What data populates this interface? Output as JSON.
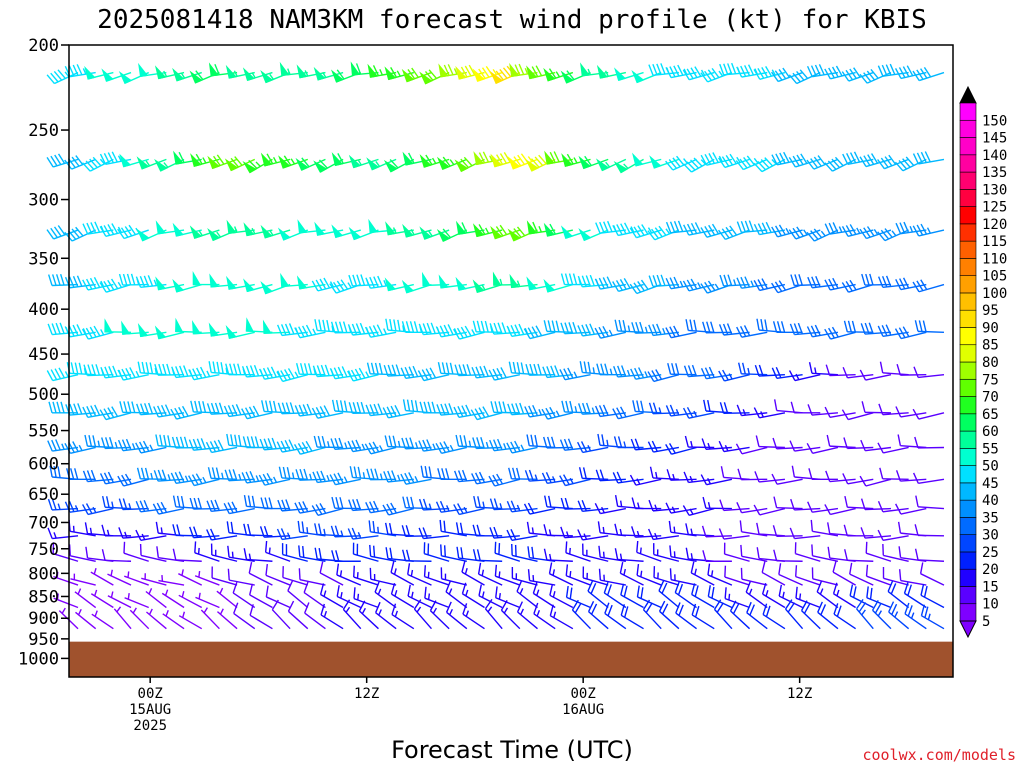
{
  "chart_data": {
    "type": "wind-barb-time-height",
    "title": "2025081418 NAM3KM forecast wind profile (kt) for KBIS",
    "xlabel": "Forecast Time (UTC)",
    "ylabel": "",
    "y_scale": "log-pressure",
    "y_reversed": true,
    "ylim": [
      1050,
      200
    ],
    "grid": false,
    "y_ticks": [
      "200",
      "250",
      "300",
      "350",
      "400",
      "450",
      "500",
      "550",
      "600",
      "650",
      "700",
      "750",
      "800",
      "850",
      "900",
      "950",
      "1000"
    ],
    "x_range_hours": [
      -4.5,
      44.5
    ],
    "x_ticks": [
      {
        "hour": 0,
        "lines": [
          "00Z",
          "15AUG",
          "2025"
        ]
      },
      {
        "hour": 12,
        "lines": [
          "12Z"
        ]
      },
      {
        "hour": 24,
        "lines": [
          "00Z",
          "16AUG"
        ]
      },
      {
        "hour": 36,
        "lines": [
          "12Z"
        ]
      },
      {
        "hour": 48,
        "lines": [
          "00Z",
          "17AUG"
        ]
      }
    ],
    "ground_pressure_hpa": 957,
    "ground_color": "#a0522d",
    "colorbar": {
      "placement": "right",
      "labels": [
        "5",
        "10",
        "15",
        "20",
        "25",
        "30",
        "35",
        "40",
        "45",
        "50",
        "55",
        "60",
        "65",
        "70",
        "75",
        "80",
        "85",
        "90",
        "95",
        "100",
        "105",
        "110",
        "115",
        "120",
        "125",
        "130",
        "135",
        "140",
        "145",
        "150"
      ],
      "colors": [
        "#7f00ff",
        "#5a00ff",
        "#2000ff",
        "#0020ff",
        "#0046ff",
        "#006bff",
        "#0090ff",
        "#00b8ff",
        "#00e0ff",
        "#00ffd0",
        "#00ff9a",
        "#00ff60",
        "#20ff20",
        "#60ff00",
        "#a0ff00",
        "#e0ff00",
        "#ffff00",
        "#ffe000",
        "#ffc000",
        "#ffa000",
        "#ff8000",
        "#ff6000",
        "#ff3000",
        "#ff0000",
        "#ff0040",
        "#ff0070",
        "#ff00a0",
        "#ff00c8",
        "#ff00e0",
        "#ff00ff"
      ],
      "under_color": "#7f00ff",
      "over_color": "#000000"
    },
    "levels_hpa": [
      215,
      270,
      325,
      375,
      425,
      475,
      525,
      575,
      625,
      675,
      725,
      775,
      825,
      875,
      925
    ],
    "level_winds": [
      {
        "p": 215,
        "dir": 255,
        "speed": [
          45,
          45,
          50,
          50,
          50,
          50,
          55,
          55,
          60,
          60,
          55,
          55,
          55,
          55,
          55,
          55,
          60,
          60,
          65,
          65,
          70,
          70,
          75,
          80,
          85,
          90,
          75,
          70,
          65,
          60,
          55,
          55,
          50,
          50,
          45,
          45,
          45,
          45,
          45,
          45,
          45,
          40,
          40,
          40,
          40,
          40,
          40,
          40,
          40,
          40
        ]
      },
      {
        "p": 270,
        "dir": 250,
        "speed": [
          40,
          40,
          45,
          45,
          50,
          55,
          55,
          60,
          65,
          70,
          70,
          65,
          65,
          65,
          60,
          60,
          60,
          55,
          55,
          60,
          60,
          65,
          65,
          70,
          75,
          80,
          85,
          80,
          70,
          65,
          60,
          55,
          55,
          50,
          50,
          45,
          45,
          45,
          45,
          45,
          45,
          40,
          40,
          40,
          40,
          40,
          40,
          40,
          40,
          40
        ]
      },
      {
        "p": 325,
        "dir": 255,
        "speed": [
          40,
          40,
          45,
          45,
          45,
          50,
          50,
          50,
          55,
          55,
          55,
          55,
          55,
          50,
          50,
          50,
          50,
          50,
          50,
          55,
          55,
          55,
          60,
          60,
          65,
          70,
          70,
          65,
          60,
          50,
          50,
          45,
          45,
          45,
          45,
          40,
          40,
          40,
          40,
          40,
          40,
          35,
          35,
          35,
          35,
          35,
          35,
          35,
          35,
          35
        ]
      },
      {
        "p": 375,
        "dir": 260,
        "speed": [
          40,
          40,
          45,
          45,
          45,
          45,
          50,
          50,
          50,
          50,
          50,
          50,
          50,
          50,
          50,
          45,
          45,
          45,
          45,
          50,
          50,
          50,
          50,
          50,
          55,
          55,
          55,
          50,
          50,
          45,
          45,
          40,
          40,
          40,
          40,
          35,
          35,
          35,
          35,
          35,
          30,
          30,
          30,
          30,
          30,
          30,
          30,
          30,
          30,
          30
        ]
      },
      {
        "p": 425,
        "dir": 265,
        "speed": [
          45,
          45,
          45,
          50,
          50,
          50,
          50,
          50,
          50,
          50,
          50,
          50,
          50,
          45,
          45,
          45,
          45,
          45,
          45,
          45,
          45,
          45,
          45,
          45,
          45,
          45,
          45,
          40,
          40,
          40,
          40,
          35,
          35,
          35,
          35,
          30,
          30,
          30,
          30,
          30,
          30,
          30,
          30,
          30,
          30,
          30,
          30,
          30,
          30,
          30
        ]
      },
      {
        "p": 475,
        "dir": 265,
        "speed": [
          45,
          45,
          45,
          45,
          45,
          45,
          45,
          45,
          45,
          45,
          45,
          45,
          45,
          45,
          45,
          45,
          45,
          45,
          40,
          40,
          40,
          40,
          40,
          40,
          40,
          40,
          40,
          40,
          40,
          35,
          35,
          35,
          35,
          35,
          30,
          30,
          30,
          30,
          25,
          25,
          20,
          20,
          15,
          15,
          10,
          10,
          10,
          10,
          10,
          10
        ]
      },
      {
        "p": 525,
        "dir": 265,
        "speed": [
          40,
          40,
          40,
          40,
          40,
          40,
          40,
          40,
          40,
          40,
          40,
          40,
          40,
          40,
          40,
          40,
          40,
          40,
          40,
          40,
          40,
          40,
          40,
          40,
          40,
          40,
          40,
          35,
          35,
          35,
          35,
          30,
          30,
          30,
          25,
          25,
          25,
          20,
          20,
          15,
          15,
          10,
          10,
          10,
          10,
          10,
          10,
          10,
          10,
          10
        ]
      },
      {
        "p": 575,
        "dir": 265,
        "speed": [
          35,
          35,
          35,
          35,
          35,
          35,
          40,
          40,
          40,
          40,
          40,
          40,
          40,
          40,
          40,
          35,
          35,
          35,
          35,
          35,
          35,
          35,
          35,
          35,
          35,
          35,
          35,
          30,
          30,
          30,
          25,
          25,
          25,
          20,
          20,
          20,
          15,
          15,
          15,
          10,
          10,
          10,
          10,
          10,
          10,
          10,
          10,
          10,
          10,
          10
        ]
      },
      {
        "p": 625,
        "dir": 265,
        "speed": [
          30,
          30,
          30,
          30,
          30,
          35,
          35,
          35,
          35,
          35,
          35,
          35,
          35,
          35,
          35,
          35,
          35,
          35,
          35,
          35,
          35,
          30,
          30,
          30,
          30,
          30,
          30,
          25,
          25,
          25,
          20,
          20,
          20,
          15,
          15,
          15,
          15,
          15,
          10,
          10,
          10,
          10,
          10,
          10,
          10,
          10,
          10,
          10,
          10,
          10
        ]
      },
      {
        "p": 675,
        "dir": 265,
        "speed": [
          25,
          25,
          25,
          25,
          25,
          30,
          30,
          30,
          30,
          30,
          30,
          30,
          30,
          30,
          30,
          30,
          30,
          30,
          30,
          30,
          30,
          25,
          25,
          25,
          25,
          25,
          25,
          20,
          20,
          20,
          20,
          15,
          15,
          15,
          15,
          15,
          15,
          15,
          10,
          10,
          10,
          10,
          10,
          10,
          10,
          10,
          10,
          10,
          10,
          10
        ]
      },
      {
        "p": 725,
        "dir": 270,
        "speed": [
          15,
          15,
          15,
          15,
          15,
          15,
          15,
          20,
          20,
          20,
          20,
          20,
          20,
          25,
          25,
          25,
          25,
          25,
          25,
          20,
          20,
          20,
          20,
          20,
          20,
          20,
          20,
          15,
          15,
          15,
          15,
          15,
          15,
          15,
          15,
          15,
          15,
          10,
          10,
          10,
          10,
          10,
          10,
          10,
          10,
          10,
          10,
          10,
          10,
          10
        ]
      },
      {
        "p": 775,
        "dir": 280,
        "speed": [
          10,
          10,
          10,
          10,
          10,
          10,
          10,
          10,
          15,
          15,
          15,
          15,
          15,
          20,
          20,
          20,
          20,
          20,
          20,
          20,
          20,
          20,
          20,
          20,
          20,
          20,
          20,
          20,
          15,
          15,
          15,
          15,
          15,
          15,
          15,
          15,
          15,
          10,
          10,
          10,
          10,
          10,
          10,
          10,
          10,
          10,
          10,
          10,
          10,
          10
        ]
      },
      {
        "p": 825,
        "dir": 290,
        "speed": [
          5,
          5,
          5,
          5,
          5,
          5,
          5,
          5,
          5,
          10,
          10,
          10,
          10,
          10,
          10,
          10,
          15,
          15,
          15,
          15,
          15,
          15,
          15,
          15,
          15,
          15,
          15,
          15,
          15,
          15,
          15,
          15,
          15,
          15,
          15,
          15,
          15,
          15,
          10,
          10,
          10,
          10,
          10,
          10,
          10,
          10,
          10,
          10,
          10,
          10
        ]
      },
      {
        "p": 875,
        "dir": 300,
        "speed": [
          5,
          5,
          5,
          5,
          5,
          5,
          5,
          5,
          5,
          5,
          10,
          10,
          10,
          10,
          10,
          15,
          15,
          15,
          15,
          15,
          15,
          15,
          15,
          15,
          15,
          15,
          15,
          15,
          15,
          20,
          20,
          20,
          20,
          20,
          20,
          20,
          20,
          20,
          15,
          15,
          15,
          15,
          15,
          15,
          15,
          20,
          20,
          20,
          20,
          20
        ]
      },
      {
        "p": 925,
        "dir": 310,
        "speed": [
          5,
          5,
          5,
          5,
          5,
          5,
          5,
          5,
          5,
          5,
          10,
          10,
          10,
          10,
          10,
          15,
          15,
          15,
          15,
          15,
          15,
          15,
          15,
          15,
          15,
          15,
          15,
          15,
          15,
          20,
          20,
          20,
          20,
          20,
          20,
          20,
          20,
          20,
          20,
          20,
          20,
          20,
          20,
          20,
          20,
          25,
          25,
          25,
          25,
          25
        ]
      }
    ]
  },
  "credit": "coolwx.com/models"
}
